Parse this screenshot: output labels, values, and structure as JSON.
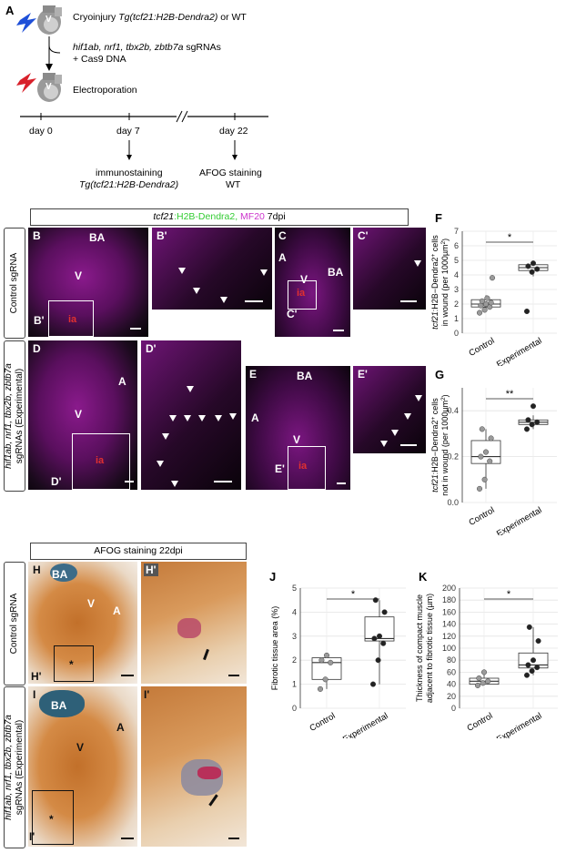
{
  "panel_letters": {
    "A": "A",
    "B": "B",
    "B_prime": "B'",
    "C": "C",
    "C_prime": "C'",
    "D": "D",
    "D_prime": "D'",
    "E": "E",
    "E_prime": "E'",
    "F": "F",
    "G": "G",
    "H": "H",
    "H_prime": "H'",
    "I": "I",
    "I_prime": "I'",
    "J": "J",
    "K": "K"
  },
  "schematic": {
    "step1": "Cryoinjury",
    "step1_italic": "Tg(tcf21:H2B-Dendra2)",
    "step1_suffix": " or WT",
    "step2_italic": "hif1ab, nrf1, tbx2b, zbtb7a",
    "step2_suffix": " sgRNAs",
    "step2_line2": "+ Cas9 DNA",
    "step3": "Electroporation",
    "heart_label": "V",
    "days": [
      "day 0",
      "day 7",
      "day 22"
    ],
    "day7_line1": "immunostaining",
    "day7_line2": "Tg(tcf21:H2B-Dendra2)",
    "day22_line1": "AFOG staining",
    "day22_line2": "WT"
  },
  "fluor_title": {
    "part1": "tcf21",
    "part2": ":H2B-Dendra2, ",
    "part3": "MF20",
    "part4": " 7dpi"
  },
  "row_labels": {
    "control": "Control sgRNA",
    "experimental_line1": "hif1ab, nrf1, tbx2b, zbtb7a",
    "experimental_line2": "sgRNAs (Experimental)"
  },
  "image_labels": {
    "BA": "BA",
    "V": "V",
    "A": "A",
    "ia": "ia",
    "asterisk": "*"
  },
  "afog_title": "AFOG staining 22dpi",
  "colors": {
    "green": "#33cc33",
    "magenta": "#cc33cc",
    "red": "#e03030",
    "box": "#ffffff"
  },
  "chart_data": [
    {
      "id": "F",
      "type": "box",
      "ylabel": "tcf21:H2B-Dendra2+ cells in wound (per 1000µm²)",
      "categories": [
        "Control",
        "Experimental"
      ],
      "ylim": [
        0,
        7
      ],
      "yticks": [
        0,
        1,
        2,
        3,
        4,
        5,
        6,
        7
      ],
      "box": [
        {
          "q1": 1.8,
          "median": 2.0,
          "q3": 2.3,
          "low": 1.5,
          "high": 2.6
        },
        {
          "q1": 4.3,
          "median": 4.5,
          "q3": 4.7,
          "low": 3.9,
          "high": 4.9
        }
      ],
      "points": [
        [
          1.4,
          1.6,
          1.8,
          1.9,
          2.0,
          2.1,
          2.2,
          2.4,
          3.8
        ],
        [
          1.5,
          4.2,
          4.4,
          4.6,
          4.8
        ]
      ],
      "significance": "*",
      "grid": true
    },
    {
      "id": "G",
      "type": "box",
      "ylabel": "tcf21:H2B-Dendra2+ cells not in wound (per 1000µm²)",
      "categories": [
        "Control",
        "Experimental"
      ],
      "ylim": [
        0,
        0.5
      ],
      "yticks": [
        0.0,
        0.2,
        0.4
      ],
      "box": [
        {
          "q1": 0.17,
          "median": 0.2,
          "q3": 0.27,
          "low": 0.06,
          "high": 0.32
        },
        {
          "q1": 0.34,
          "median": 0.35,
          "q3": 0.36,
          "low": 0.32,
          "high": 0.38
        }
      ],
      "points": [
        [
          0.06,
          0.1,
          0.18,
          0.2,
          0.22,
          0.28,
          0.32
        ],
        [
          0.32,
          0.34,
          0.35,
          0.36,
          0.42
        ]
      ],
      "significance": "**",
      "grid": true
    },
    {
      "id": "J",
      "type": "box",
      "ylabel": "Fibrotic tissue area (%)",
      "categories": [
        "Control",
        "Experimental"
      ],
      "ylim": [
        0,
        5
      ],
      "yticks": [
        0,
        1,
        2,
        3,
        4,
        5
      ],
      "box": [
        {
          "q1": 1.2,
          "median": 1.9,
          "q3": 2.1,
          "low": 0.8,
          "high": 2.2
        },
        {
          "q1": 2.8,
          "median": 2.9,
          "q3": 3.8,
          "low": 1.0,
          "high": 4.5
        }
      ],
      "points": [
        [
          0.8,
          1.2,
          1.9,
          2.0,
          2.2
        ],
        [
          1.0,
          2.0,
          2.7,
          2.9,
          3.0,
          4.0,
          4.5
        ]
      ],
      "significance": "*",
      "grid": true
    },
    {
      "id": "K",
      "type": "box",
      "ylabel": "Thickness of compact muscle adjacent to fibrotic tissue (µm)",
      "categories": [
        "Control",
        "Experimental"
      ],
      "ylim": [
        0,
        200
      ],
      "yticks": [
        0,
        20,
        40,
        60,
        80,
        100,
        120,
        140,
        160,
        180,
        200
      ],
      "box": [
        {
          "q1": 40,
          "median": 45,
          "q3": 50,
          "low": 38,
          "high": 60
        },
        {
          "q1": 67,
          "median": 72,
          "q3": 92,
          "low": 55,
          "high": 135
        }
      ],
      "points": [
        [
          38,
          42,
          45,
          50,
          60
        ],
        [
          55,
          62,
          68,
          72,
          80,
          112,
          135
        ]
      ],
      "significance": "*",
      "grid": true
    }
  ]
}
